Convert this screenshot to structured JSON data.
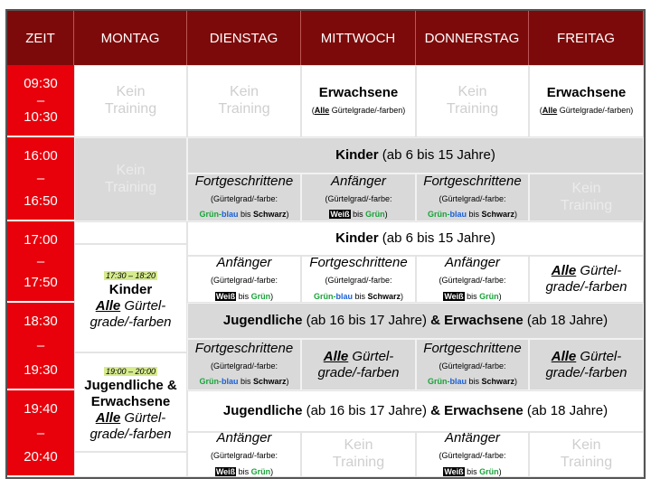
{
  "header": {
    "columns": [
      "ZEIT",
      "MONTAG",
      "DIENSTAG",
      "MITTWOCH",
      "DONNERSTAG",
      "FREITAG"
    ]
  },
  "times": [
    {
      "start": "09:30",
      "separator": "–",
      "end": "10:30"
    },
    {
      "start": "16:00",
      "separator": "–",
      "end": "16:50"
    },
    {
      "start": "17:00",
      "separator": "–",
      "end": "17:50"
    },
    {
      "start": "18:30",
      "separator": "–",
      "end": "19:30"
    },
    {
      "start": "19:40",
      "separator": "–",
      "end": "20:40"
    }
  ],
  "cells": [
    {
      "kind": "kein",
      "lines": [
        [
          {
            "text": "Kein"
          }
        ],
        [
          {
            "text": "Training"
          }
        ]
      ]
    },
    {
      "kind": "kein",
      "lines": [
        [
          {
            "text": "Kein"
          }
        ],
        [
          {
            "text": "Training"
          }
        ]
      ]
    },
    {
      "kind": "course",
      "lines": [
        [
          {
            "text": "Erwachsene",
            "style": "title"
          }
        ],
        [
          {
            "text": "(",
            "style": "small"
          },
          {
            "text": "Alle",
            "style": "small-bu"
          },
          {
            "text": " Gürtelgrade/-farben)",
            "style": "small"
          }
        ]
      ]
    },
    {
      "kind": "kein",
      "lines": [
        [
          {
            "text": "Kein"
          }
        ],
        [
          {
            "text": "Training"
          }
        ]
      ]
    },
    {
      "kind": "course",
      "lines": [
        [
          {
            "text": "Erwachsene",
            "style": "title"
          }
        ],
        [
          {
            "text": "(",
            "style": "small"
          },
          {
            "text": "Alle",
            "style": "small-bu"
          },
          {
            "text": " Gürtelgrade/-farben)",
            "style": "small"
          }
        ]
      ]
    },
    {
      "kind": "kein",
      "lines": [
        [
          {
            "text": "Kein"
          }
        ],
        [
          {
            "text": "Training"
          }
        ]
      ]
    },
    {
      "kind": "band",
      "lines": [
        [
          {
            "text": "Kinder",
            "style": "b"
          },
          {
            "text": " (ab 6 bis 15 Jahre)"
          }
        ]
      ]
    },
    {
      "kind": "course",
      "lines": [
        [
          {
            "text": "Fortgeschrittene",
            "style": "i"
          }
        ],
        [
          {
            "text": "(Gürtelgrad/-farbe:",
            "style": "small"
          }
        ],
        [
          {
            "text": "Grün-",
            "style": "small-green"
          },
          {
            "text": "blau",
            "style": "small-blue"
          },
          {
            "text": " bis ",
            "style": "small"
          },
          {
            "text": "Schwarz",
            "style": "small-b"
          },
          {
            "text": ")",
            "style": "small"
          }
        ]
      ]
    },
    {
      "kind": "course",
      "lines": [
        [
          {
            "text": "Anfänger",
            "style": "i"
          }
        ],
        [
          {
            "text": "(Gürtelgrad/-farbe:",
            "style": "small"
          }
        ],
        [
          {
            "text": "Weiß",
            "style": "small-weiss"
          },
          {
            "text": " bis ",
            "style": "small"
          },
          {
            "text": "Grün",
            "style": "small-green"
          },
          {
            "text": ")",
            "style": "small"
          }
        ]
      ]
    },
    {
      "kind": "course",
      "lines": [
        [
          {
            "text": "Fortgeschrittene",
            "style": "i"
          }
        ],
        [
          {
            "text": "(Gürtelgrad/-farbe:",
            "style": "small"
          }
        ],
        [
          {
            "text": "Grün-",
            "style": "small-green"
          },
          {
            "text": "blau",
            "style": "small-blue"
          },
          {
            "text": " bis ",
            "style": "small"
          },
          {
            "text": "Schwarz",
            "style": "small-b"
          },
          {
            "text": ")",
            "style": "small"
          }
        ]
      ]
    },
    {
      "kind": "kein",
      "lines": [
        [
          {
            "text": "Kein"
          }
        ],
        [
          {
            "text": "Training"
          }
        ]
      ]
    },
    {
      "kind": "band",
      "lines": [
        [
          {
            "text": "Kinder",
            "style": "b"
          },
          {
            "text": " (ab 6 bis 15 Jahre)"
          }
        ]
      ]
    },
    {
      "kind": "course",
      "lines": [
        [
          {
            "text": "Anfänger",
            "style": "i"
          }
        ],
        [
          {
            "text": "(Gürtelgrad/-farbe:",
            "style": "small"
          }
        ],
        [
          {
            "text": "Weiß",
            "style": "small-weiss"
          },
          {
            "text": " bis ",
            "style": "small"
          },
          {
            "text": "Grün",
            "style": "small-green"
          },
          {
            "text": ")",
            "style": "small"
          }
        ]
      ]
    },
    {
      "kind": "course",
      "lines": [
        [
          {
            "text": "Fortgeschrittene",
            "style": "i"
          }
        ],
        [
          {
            "text": "(Gürtelgrad/-farbe:",
            "style": "small"
          }
        ],
        [
          {
            "text": "Grün-",
            "style": "small-green"
          },
          {
            "text": "blau",
            "style": "small-blue"
          },
          {
            "text": " bis ",
            "style": "small"
          },
          {
            "text": "Schwarz",
            "style": "small-b"
          },
          {
            "text": ")",
            "style": "small"
          }
        ]
      ]
    },
    {
      "kind": "course",
      "lines": [
        [
          {
            "text": "Anfänger",
            "style": "i"
          }
        ],
        [
          {
            "text": "(Gürtelgrad/-farbe:",
            "style": "small"
          }
        ],
        [
          {
            "text": "Weiß",
            "style": "small-weiss"
          },
          {
            "text": " bis ",
            "style": "small"
          },
          {
            "text": "Grün",
            "style": "small-green"
          },
          {
            "text": ")",
            "style": "small"
          }
        ]
      ]
    },
    {
      "kind": "course",
      "lines": [
        [
          {
            "text": "Alle",
            "style": "biu"
          },
          {
            "text": " Gürtel-",
            "style": "i"
          }
        ],
        [
          {
            "text": "grade/-farben",
            "style": "i"
          }
        ]
      ]
    },
    {
      "kind": "band",
      "lines": [
        [
          {
            "text": "Jugendliche",
            "style": "b"
          },
          {
            "text": " (ab 16 bis 17 Jahre) "
          },
          {
            "text": "& Erwachsene",
            "style": "b"
          },
          {
            "text": " (ab 18 Jahre)"
          }
        ]
      ]
    },
    {
      "kind": "course",
      "lines": [
        [
          {
            "text": "Fortgeschrittene",
            "style": "i"
          }
        ],
        [
          {
            "text": "(Gürtelgrad/-farbe:",
            "style": "small"
          }
        ],
        [
          {
            "text": "Grün-",
            "style": "small-green"
          },
          {
            "text": "blau",
            "style": "small-blue"
          },
          {
            "text": " bis ",
            "style": "small"
          },
          {
            "text": "Schwarz",
            "style": "small-b"
          },
          {
            "text": ")",
            "style": "small"
          }
        ]
      ]
    },
    {
      "kind": "course",
      "lines": [
        [
          {
            "text": "Alle",
            "style": "biu"
          },
          {
            "text": " Gürtel-",
            "style": "i"
          }
        ],
        [
          {
            "text": "grade/-farben",
            "style": "i"
          }
        ]
      ]
    },
    {
      "kind": "course",
      "lines": [
        [
          {
            "text": "Fortgeschrittene",
            "style": "i"
          }
        ],
        [
          {
            "text": "(Gürtelgrad/-farbe:",
            "style": "small"
          }
        ],
        [
          {
            "text": "Grün-",
            "style": "small-green"
          },
          {
            "text": "blau",
            "style": "small-blue"
          },
          {
            "text": " bis ",
            "style": "small"
          },
          {
            "text": "Schwarz",
            "style": "small-b"
          },
          {
            "text": ")",
            "style": "small"
          }
        ]
      ]
    },
    {
      "kind": "course",
      "lines": [
        [
          {
            "text": "Alle",
            "style": "biu"
          },
          {
            "text": " Gürtel-",
            "style": "i"
          }
        ],
        [
          {
            "text": "grade/-farben",
            "style": "i"
          }
        ]
      ]
    },
    {
      "kind": "band",
      "lines": [
        [
          {
            "text": "Jugendliche",
            "style": "b"
          },
          {
            "text": " (ab 16 bis 17 Jahre) "
          },
          {
            "text": "& Erwachsene",
            "style": "b"
          },
          {
            "text": " (ab 18 Jahre)"
          }
        ]
      ]
    },
    {
      "kind": "course",
      "lines": [
        [
          {
            "text": "Anfänger",
            "style": "i"
          }
        ],
        [
          {
            "text": "(Gürtelgrad/-farbe:",
            "style": "small"
          }
        ],
        [
          {
            "text": "Weiß",
            "style": "small-weiss"
          },
          {
            "text": " bis ",
            "style": "small"
          },
          {
            "text": "Grün",
            "style": "small-green"
          },
          {
            "text": ")",
            "style": "small"
          }
        ]
      ]
    },
    {
      "kind": "kein",
      "lines": [
        [
          {
            "text": "Kein"
          }
        ],
        [
          {
            "text": "Training"
          }
        ]
      ]
    },
    {
      "kind": "course",
      "lines": [
        [
          {
            "text": "Anfänger",
            "style": "i"
          }
        ],
        [
          {
            "text": "(Gürtelgrad/-farbe:",
            "style": "small"
          }
        ],
        [
          {
            "text": "Weiß",
            "style": "small-weiss"
          },
          {
            "text": " bis ",
            "style": "small"
          },
          {
            "text": "Grün",
            "style": "small-green"
          },
          {
            "text": ")",
            "style": "small"
          }
        ]
      ]
    },
    {
      "kind": "kein",
      "lines": [
        [
          {
            "text": "Kein"
          }
        ],
        [
          {
            "text": "Training"
          }
        ]
      ]
    },
    {
      "kind": "course",
      "lines": [
        [
          {
            "text": "17:30 – 18:20",
            "style": "hl"
          }
        ],
        [
          {
            "text": "Kinder",
            "style": "title"
          }
        ],
        [
          {
            "text": "Alle",
            "style": "biu"
          },
          {
            "text": " Gürtel-",
            "style": "i"
          }
        ],
        [
          {
            "text": "grade/-farben",
            "style": "i"
          }
        ]
      ]
    },
    {
      "kind": "course",
      "lines": [
        [
          {
            "text": "19:00 – 20:00",
            "style": "hl"
          }
        ],
        [
          {
            "text": "Jugendliche &",
            "style": "title"
          }
        ],
        [
          {
            "text": "Erwachsene",
            "style": "title"
          }
        ],
        [
          {
            "text": "Alle",
            "style": "biu"
          },
          {
            "text": " Gürtel-",
            "style": "i"
          }
        ],
        [
          {
            "text": "grade/-farben",
            "style": "i"
          }
        ]
      ]
    }
  ]
}
